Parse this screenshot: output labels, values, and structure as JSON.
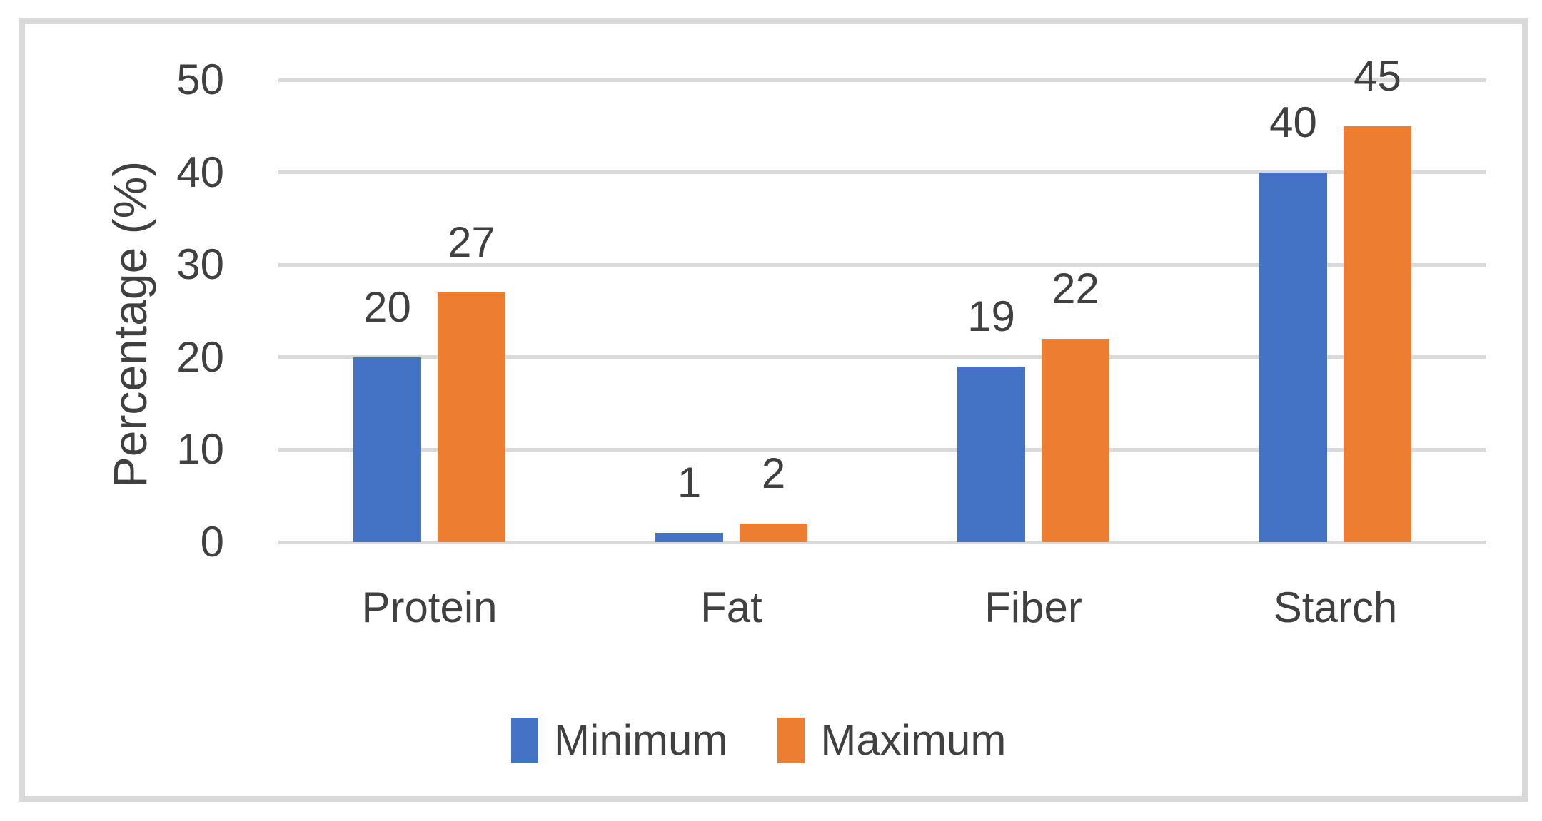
{
  "chart_data": {
    "type": "bar",
    "categories": [
      "Protein",
      "Fat",
      "Fiber",
      "Starch"
    ],
    "series": [
      {
        "name": "Minimum",
        "color": "#4472C4",
        "values": [
          20,
          1,
          19,
          40
        ]
      },
      {
        "name": "Maximum",
        "color": "#ED7D31",
        "values": [
          27,
          2,
          22,
          45
        ]
      }
    ],
    "title": "",
    "xlabel": "",
    "ylabel": "Percentage (%)",
    "ylim": [
      0,
      50
    ],
    "yticks": [
      0,
      10,
      20,
      30,
      40,
      50
    ],
    "grid": true,
    "data_labels": true,
    "legend_position": "bottom",
    "colors": {
      "gridline": "#D9D9D9",
      "frame_border": "#D9D9D9",
      "text": "#404040",
      "background": "#FFFFFF"
    }
  }
}
